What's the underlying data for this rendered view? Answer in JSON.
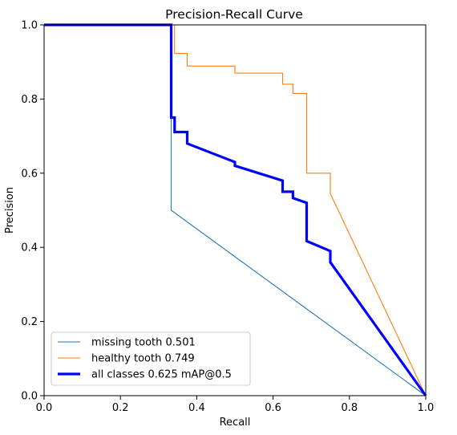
{
  "chart_data": {
    "type": "line",
    "title": "Precision-Recall Curve",
    "xlabel": "Recall",
    "ylabel": "Precision",
    "xlim": [
      0,
      1
    ],
    "ylim": [
      0,
      1
    ],
    "x_ticks": [
      "0.0",
      "0.2",
      "0.4",
      "0.6",
      "0.8",
      "1.0"
    ],
    "y_ticks": [
      "0.0",
      "0.2",
      "0.4",
      "0.6",
      "0.8",
      "1.0"
    ],
    "grid": false,
    "legend_position": "lower-left",
    "series": [
      {
        "name": "missing tooth 0.501",
        "color": "#1f77b4",
        "line_width": "thin",
        "x": [
          0,
          0.333,
          0.333,
          0.333,
          1.0
        ],
        "y": [
          1.0,
          1.0,
          0.75,
          0.5,
          0.0
        ]
      },
      {
        "name": "healthy tooth 0.749",
        "color": "#ff7f0e",
        "line_width": "thin",
        "x": [
          0,
          0.333,
          0.342,
          0.342,
          0.375,
          0.375,
          0.5,
          0.5,
          0.625,
          0.625,
          0.652,
          0.652,
          0.688,
          0.688,
          0.75,
          0.75,
          1.0
        ],
        "y": [
          1.0,
          1.0,
          1.0,
          0.923,
          0.923,
          0.889,
          0.889,
          0.87,
          0.87,
          0.84,
          0.84,
          0.815,
          0.815,
          0.6,
          0.6,
          0.545,
          0.0
        ]
      },
      {
        "name": "all classes 0.625 mAP@0.5",
        "color": "#0000ff",
        "line_width": "thick",
        "x": [
          0,
          0.333,
          0.333,
          0.342,
          0.342,
          0.375,
          0.375,
          0.5,
          0.5,
          0.625,
          0.625,
          0.652,
          0.652,
          0.688,
          0.688,
          0.75,
          0.75,
          1.0
        ],
        "y": [
          1.0,
          1.0,
          0.75,
          0.75,
          0.711,
          0.711,
          0.68,
          0.63,
          0.62,
          0.58,
          0.55,
          0.55,
          0.533,
          0.52,
          0.417,
          0.39,
          0.36,
          0.0
        ]
      }
    ]
  }
}
